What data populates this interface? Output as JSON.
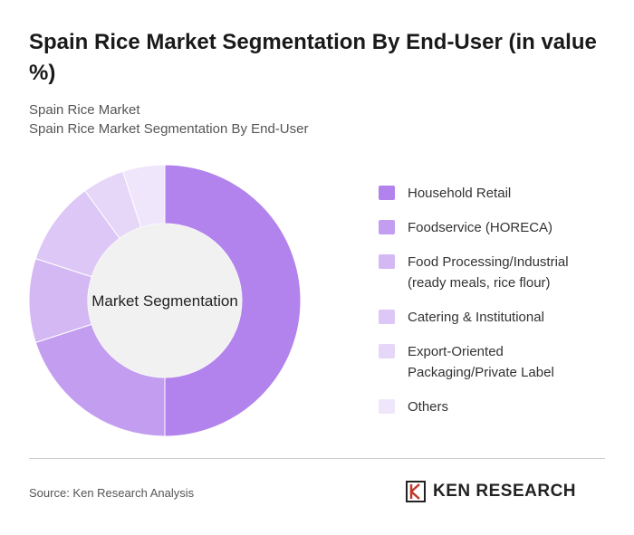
{
  "chart_data": {
    "type": "donut",
    "title": "Spain Rice Market Segmentation By End-User (in value %)",
    "subtitle": [
      "Spain Rice Market",
      "Spain Rice Market Segmentation By End-User"
    ],
    "center_label": "Market Segmentation",
    "categories": [
      "Household Retail",
      "Foodservice (HORECA)",
      "Food Processing/Industrial (ready meals, rice flour)",
      "Catering & Institutional",
      "Export-Oriented Packaging/Private Label",
      "Others"
    ],
    "values": [
      50,
      20,
      10,
      10,
      5,
      5
    ],
    "colors": [
      "#b283ec",
      "#c39df0",
      "#d3b8f4",
      "#dcc7f6",
      "#e6d6f8",
      "#efe6fb"
    ]
  },
  "source": "Source: Ken Research Analysis",
  "logo": "KEN RESEARCH"
}
